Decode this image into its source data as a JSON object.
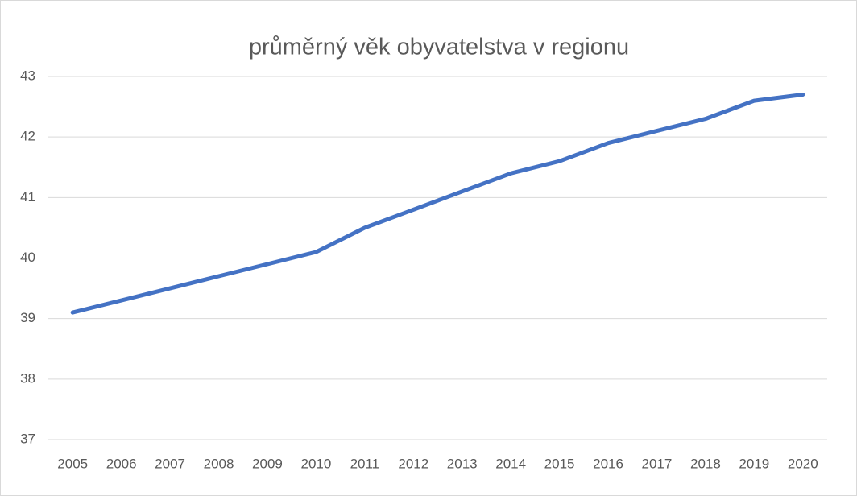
{
  "chart_data": {
    "type": "line",
    "title": "průměrný věk obyvatelstva v regionu",
    "categories": [
      "2005",
      "2006",
      "2007",
      "2008",
      "2009",
      "2010",
      "2011",
      "2012",
      "2013",
      "2014",
      "2015",
      "2016",
      "2017",
      "2018",
      "2019",
      "2020"
    ],
    "values": [
      39.1,
      39.3,
      39.5,
      39.7,
      39.9,
      40.1,
      40.5,
      40.8,
      41.1,
      41.4,
      41.6,
      41.9,
      42.1,
      42.3,
      42.6,
      42.7
    ],
    "color": "#4472c4",
    "ylim": [
      37,
      43
    ],
    "yticks": [
      37,
      38,
      39,
      40,
      41,
      42,
      43
    ],
    "grid": true
  }
}
